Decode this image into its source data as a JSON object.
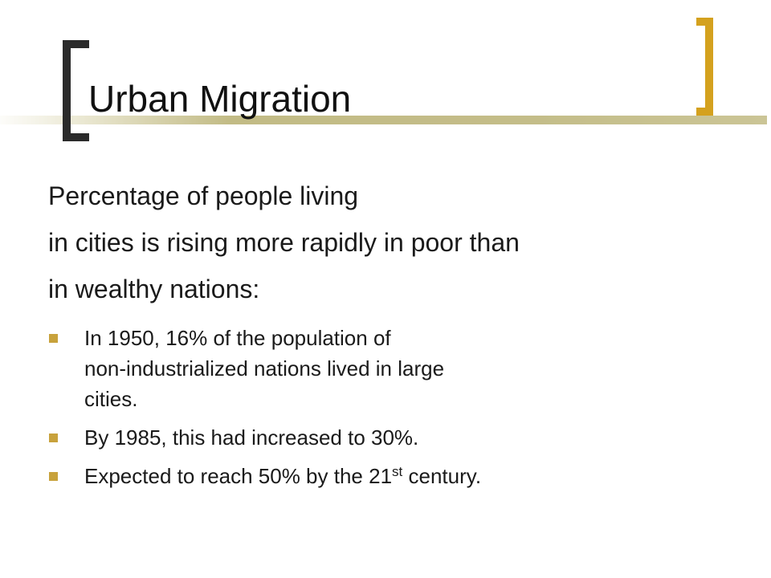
{
  "slide": {
    "title": "Urban Migration",
    "intro_lines": [
      "Percentage of people living",
      "in cities is rising more rapidly in poor than",
      "in wealthy nations:"
    ],
    "bullets": [
      {
        "lines": [
          "In 1950, 16% of the population of",
          "non-industrialized nations lived in large",
          "cities."
        ]
      },
      {
        "lines": [
          "By 1985, this had increased to 30%."
        ]
      },
      {
        "text_before": "Expected to reach 50% by the 21",
        "superscript": "st",
        "text_after": " century."
      }
    ]
  },
  "colors": {
    "left_bracket": "#2b2b2b",
    "right_bracket": "#d4a11e",
    "accent_line": "#c2bb85",
    "bullet_marker": "#c8a23c"
  }
}
